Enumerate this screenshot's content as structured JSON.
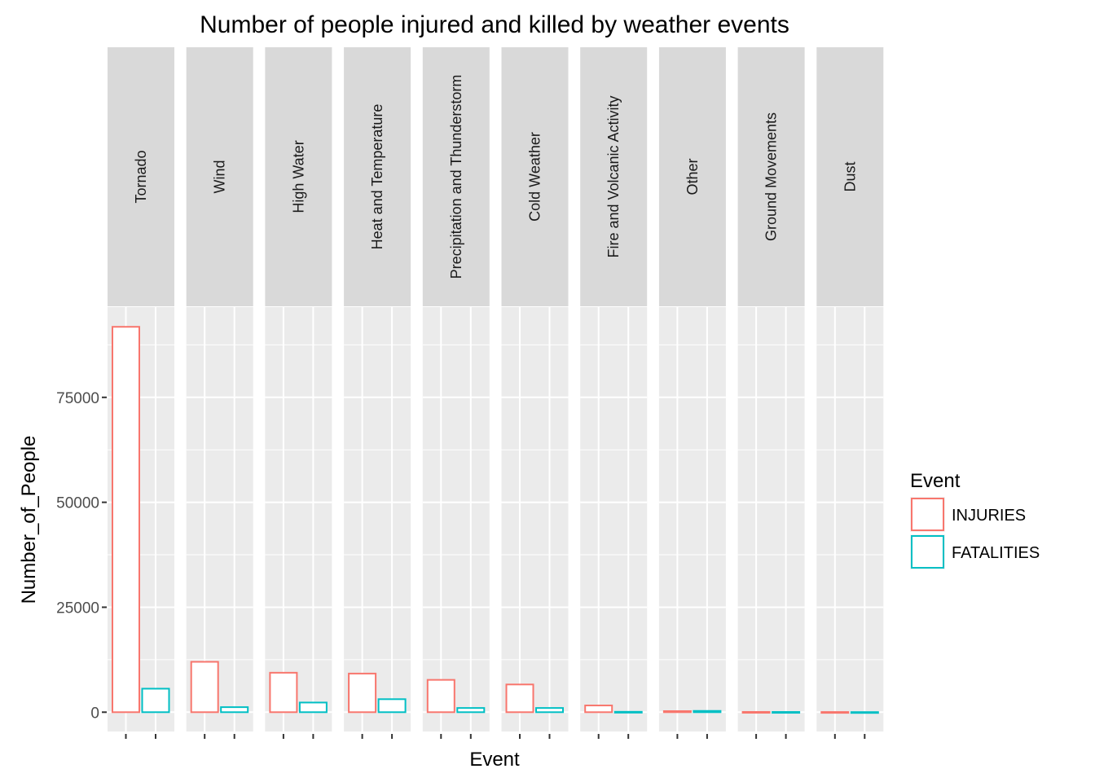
{
  "chart_data": {
    "type": "bar",
    "title": "Number of people injured and killed by weather events",
    "xlabel": "Event",
    "ylabel": "Number_of_People",
    "facets": [
      "Tornado",
      "Wind",
      "High Water",
      "Heat and Temperature",
      "Precipitation and Thunderstorm",
      "Cold Weather",
      "Fire and Volcanic Activity",
      "Other",
      "Ground Movements",
      "Dust"
    ],
    "series": [
      {
        "name": "INJURIES",
        "values": [
          91800,
          12000,
          9400,
          9200,
          7700,
          6600,
          1600,
          250,
          60,
          40
        ]
      },
      {
        "name": "FATALITIES",
        "values": [
          5600,
          1200,
          2300,
          3100,
          1000,
          1000,
          90,
          300,
          50,
          20
        ]
      }
    ],
    "yticks": [
      0,
      25000,
      50000,
      75000
    ],
    "ylim": [
      -4600,
      96500
    ],
    "legend": {
      "title": "Event",
      "placement": "right"
    },
    "colors": {
      "INJURIES": "#F8766D",
      "FATALITIES": "#00BFC4",
      "panel": "#EBEBEB",
      "strip": "#D9D9D9",
      "grid": "#FFFFFF"
    }
  }
}
